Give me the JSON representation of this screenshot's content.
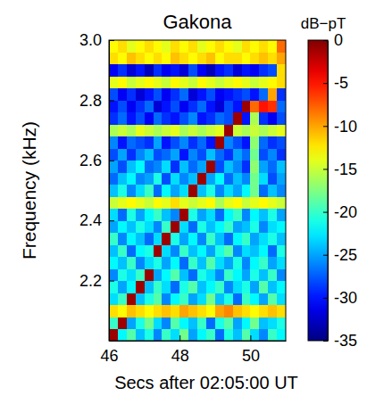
{
  "chart_data": {
    "type": "heatmap",
    "title": "Gakona",
    "x_label": "Secs after 02:05:00 UT",
    "y_label": "Frequency (kHz)",
    "xlim": [
      46,
      51
    ],
    "ylim": [
      2.0,
      3.0
    ],
    "xticks": [
      46,
      48,
      50
    ],
    "yticks": [
      2.2,
      2.4,
      2.6,
      2.8,
      {
        "value": 3.0,
        "label": "3.0"
      }
    ],
    "x_edges": [
      46,
      46.25,
      46.5,
      46.75,
      47,
      47.25,
      47.5,
      47.75,
      48,
      48.25,
      48.5,
      48.75,
      49,
      49.25,
      49.5,
      49.75,
      50,
      50.25,
      50.5,
      50.75,
      51
    ],
    "y_edges": [
      2.0,
      2.04,
      2.08,
      2.12,
      2.16,
      2.2,
      2.24,
      2.28,
      2.32,
      2.36,
      2.4,
      2.44,
      2.48,
      2.52,
      2.56,
      2.6,
      2.64,
      2.68,
      2.72,
      2.76,
      2.8,
      2.84,
      2.88,
      2.92,
      2.96,
      3.0
    ],
    "z": [
      [
        -1,
        -22,
        -19,
        -24,
        -21,
        -26,
        -20,
        -23,
        -18,
        -25,
        -22,
        -20,
        -27,
        -21,
        -24,
        -19,
        -23,
        -26,
        -20,
        -22
      ],
      [
        -20,
        -1,
        -25,
        -21,
        -18,
        -23,
        -26,
        -19,
        -22,
        -24,
        -20,
        -27,
        -21,
        -19,
        -25,
        -22,
        -18,
        -24,
        -23,
        -21
      ],
      [
        -12,
        -13,
        -11,
        -12,
        -13,
        -12,
        -11,
        -12,
        -10,
        -11,
        -12,
        -13,
        -10,
        -9,
        -11,
        -12,
        -13,
        -12,
        -11,
        -12
      ],
      [
        -23,
        -20,
        -1,
        -24,
        -21,
        -19,
        -26,
        -22,
        -20,
        -25,
        -23,
        -18,
        -24,
        -21,
        -27,
        -20,
        -22,
        -25,
        -19,
        -23
      ],
      [
        -21,
        -25,
        -22,
        -1,
        -24,
        -20,
        -23,
        -27,
        -21,
        -19,
        -24,
        -22,
        -20,
        -26,
        -23,
        -21,
        -25,
        -19,
        -24,
        -22
      ],
      [
        -26,
        -21,
        -23,
        -20,
        -1,
        -25,
        -22,
        -19,
        -24,
        -27,
        -21,
        -23,
        -26,
        -20,
        -22,
        -25,
        -21,
        -24,
        -20,
        -26
      ],
      [
        -22,
        -24,
        -20,
        -26,
        -23,
        -21,
        -25,
        -22,
        -27,
        -20,
        -24,
        -19,
        -23,
        -25,
        -21,
        -26,
        -22,
        -20,
        -25,
        -23
      ],
      [
        -24,
        -20,
        -27,
        -22,
        -21,
        -1,
        -23,
        -26,
        -20,
        -24,
        -22,
        -25,
        -21,
        -19,
        -26,
        -23,
        -24,
        -22,
        -27,
        -21
      ],
      [
        -20,
        -26,
        -22,
        -24,
        -27,
        -23,
        -1,
        -21,
        -25,
        -22,
        -26,
        -20,
        -24,
        -27,
        -22,
        -20,
        -25,
        -23,
        -21,
        -24
      ],
      [
        -25,
        -22,
        -24,
        -21,
        -23,
        -26,
        -20,
        -1,
        -23,
        -27,
        -21,
        -24,
        -22,
        -20,
        -25,
        -24,
        -21,
        -26,
        -23,
        -22
      ],
      [
        -23,
        -27,
        -21,
        -25,
        -22,
        -20,
        -24,
        -26,
        -1,
        -21,
        -25,
        -23,
        -27,
        -22,
        -20,
        -26,
        -22,
        -24,
        -21,
        -25
      ],
      [
        -15,
        -14,
        -13,
        -14,
        -15,
        -13,
        -14,
        -12,
        -14,
        -15,
        -14,
        -13,
        -16,
        -14,
        -13,
        -15,
        -14,
        -13,
        -14,
        -15
      ],
      [
        -24,
        -21,
        -26,
        -23,
        -20,
        -27,
        -22,
        -25,
        -23,
        -1,
        -24,
        -21,
        -26,
        -23,
        -25,
        -22,
        -18,
        -27,
        -24,
        -26
      ],
      [
        -27,
        -24,
        -22,
        -26,
        -25,
        -21,
        -28,
        -23,
        -26,
        -24,
        -1,
        -25,
        -22,
        -27,
        -24,
        -26,
        -18,
        -23,
        -28,
        -25
      ],
      [
        -25,
        -28,
        -24,
        -22,
        -27,
        -26,
        -23,
        -29,
        -24,
        -27,
        -25,
        -1,
        -28,
        -24,
        -26,
        -29,
        -17,
        -25,
        -27,
        -24
      ],
      [
        -28,
        -25,
        -29,
        -26,
        -24,
        -28,
        -27,
        -25,
        -30,
        -26,
        -28,
        -24,
        -27,
        -29,
        -25,
        -27,
        -18,
        -28,
        -26,
        -29
      ],
      [
        -26,
        -30,
        -27,
        -28,
        -29,
        -25,
        -30,
        -28,
        -26,
        -29,
        -27,
        -30,
        -1,
        -26,
        -28,
        -30,
        -17,
        -27,
        -29,
        -28
      ],
      [
        -16,
        -15,
        -16,
        -14,
        -15,
        -16,
        -15,
        -14,
        -16,
        -15,
        -16,
        -15,
        -14,
        -1,
        -15,
        -16,
        -15,
        -16,
        -15,
        -14
      ],
      [
        -29,
        -27,
        -30,
        -28,
        -31,
        -27,
        -29,
        -30,
        -28,
        -26,
        -30,
        -29,
        -27,
        -28,
        -1,
        -30,
        -16,
        -29,
        -31,
        -28
      ],
      [
        -30,
        -28,
        -31,
        -29,
        -27,
        -32,
        -30,
        -28,
        -31,
        -29,
        -27,
        -30,
        -32,
        -28,
        -30,
        -1,
        -8,
        -5,
        -6,
        -27
      ],
      [
        -28,
        -31,
        -29,
        -32,
        -30,
        -28,
        -31,
        -29,
        -27,
        -32,
        -30,
        -28,
        -31,
        -30,
        -29,
        -28,
        -30,
        -27,
        -10,
        -29
      ],
      [
        -14,
        -13,
        -15,
        -14,
        -13,
        -14,
        -15,
        -13,
        -14,
        -15,
        -13,
        -14,
        -15,
        -14,
        -13,
        -14,
        -15,
        -14,
        -13,
        -12
      ],
      [
        -31,
        -29,
        -32,
        -30,
        -33,
        -29,
        -31,
        -30,
        -32,
        -28,
        -31,
        -33,
        -30,
        -29,
        -32,
        -30,
        -31,
        -29,
        -28,
        -12
      ],
      [
        -12,
        -13,
        -11,
        -12,
        -13,
        -12,
        -13,
        -11,
        -12,
        -13,
        -12,
        -11,
        -13,
        -12,
        -12,
        -13,
        -12,
        -11,
        -12,
        -10
      ],
      [
        -13,
        -12,
        -14,
        -13,
        -12,
        -13,
        -14,
        -12,
        -13,
        -12,
        -14,
        -13,
        -12,
        -13,
        -14,
        -12,
        -13,
        -12,
        -13,
        -8
      ]
    ],
    "colorbar": {
      "label": "dB−pT",
      "range": [
        -35,
        0
      ],
      "ticks": [
        0,
        -5,
        -10,
        -15,
        -20,
        -25,
        -30,
        -35
      ]
    }
  }
}
